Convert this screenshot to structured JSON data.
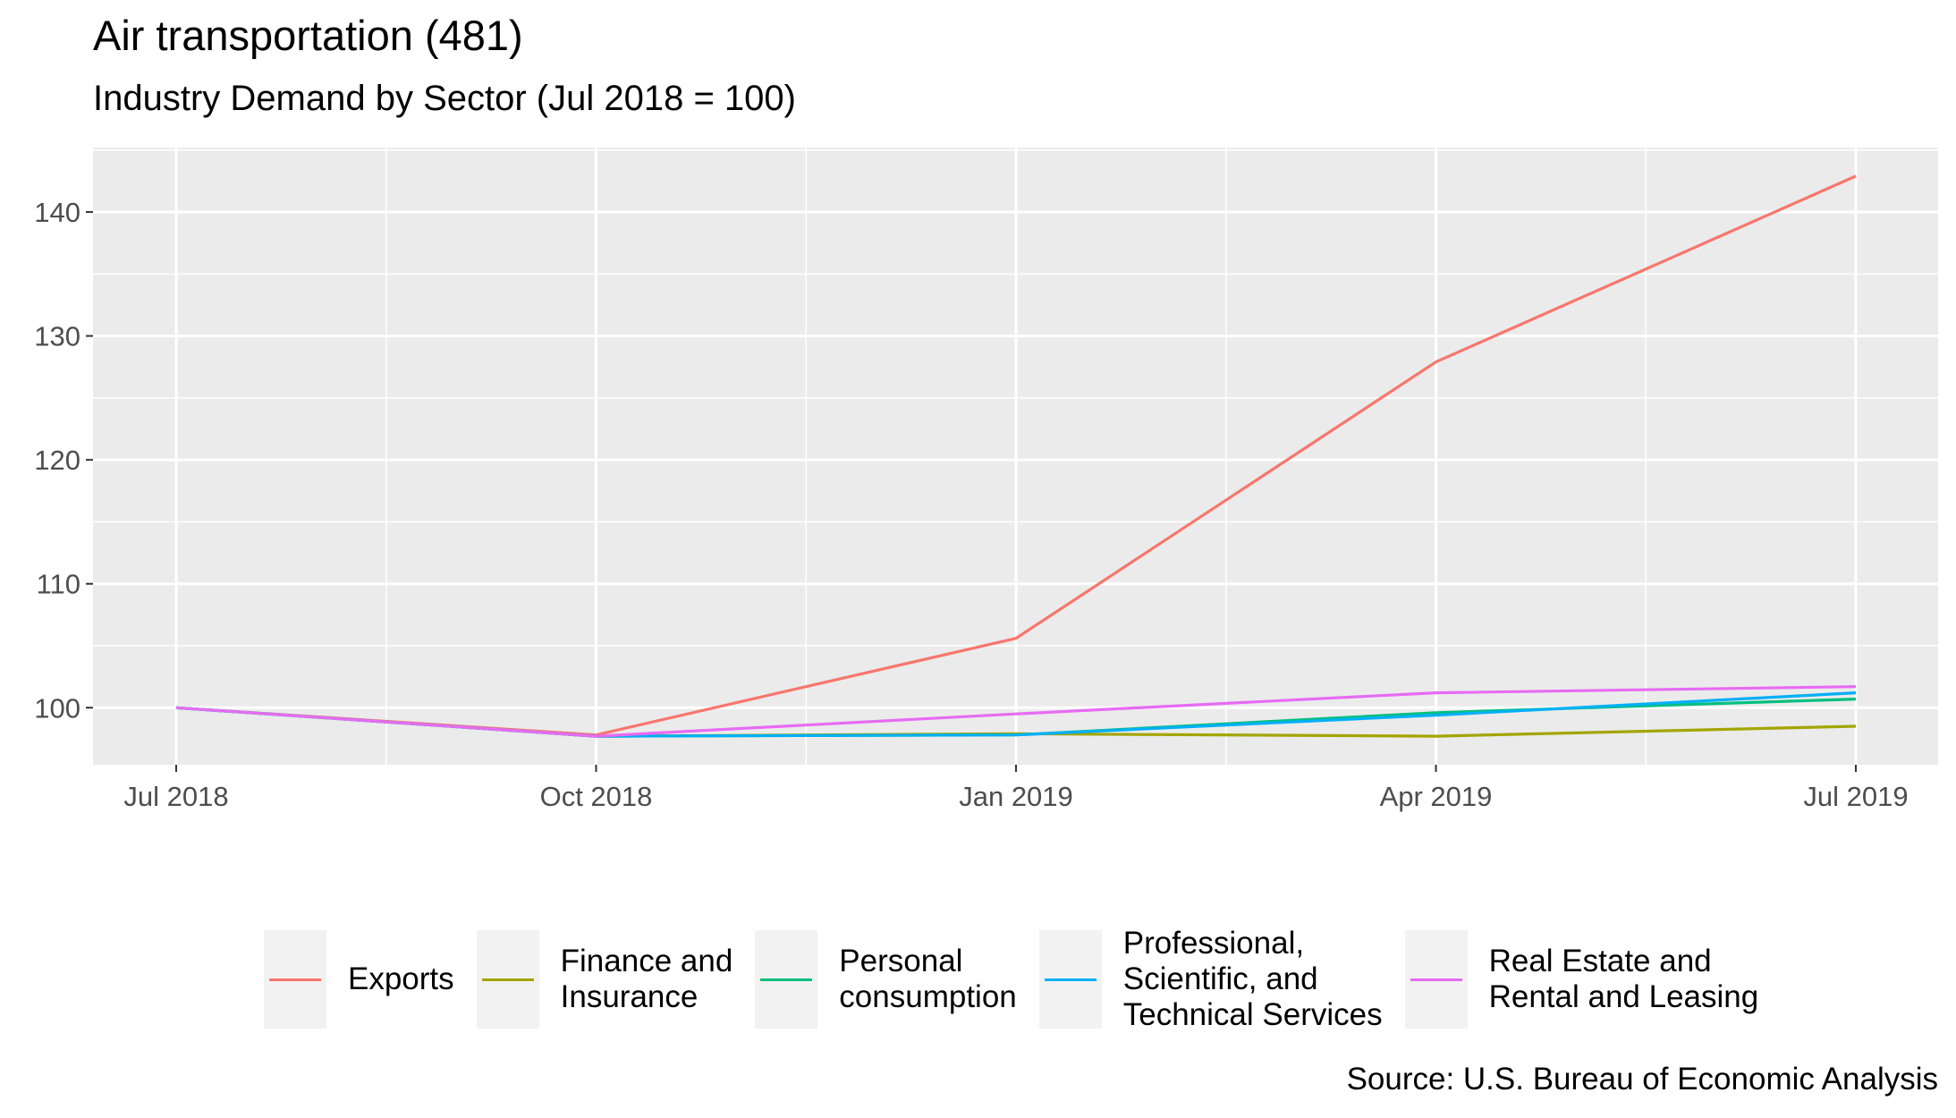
{
  "title": "Air transportation (481)",
  "subtitle": "Industry Demand by Sector (Jul 2018 = 100)",
  "caption": "Source: U.S. Bureau of Economic Analysis",
  "chart_data": {
    "type": "line",
    "title": "Air transportation (481)",
    "subtitle": "Industry Demand by Sector (Jul 2018 = 100)",
    "xlabel": "",
    "ylabel": "",
    "x": [
      "2018-07",
      "2018-10",
      "2019-01",
      "2019-04",
      "2019-07"
    ],
    "x_tick_labels": [
      "Jul 2018",
      "Oct 2018",
      "Jan 2019",
      "Apr 2019",
      "Jul 2019"
    ],
    "y_ticks": [
      100,
      110,
      120,
      130,
      140
    ],
    "ylim": [
      95.4,
      145.2
    ],
    "grid": true,
    "legend_position": "bottom",
    "background": "#ebebeb",
    "series": [
      {
        "name": "Exports",
        "color": "#f8766d",
        "values": [
          100.0,
          97.8,
          105.6,
          127.9,
          142.9
        ]
      },
      {
        "name": "Finance and\nInsurance",
        "color": "#a3a500",
        "values": [
          100.0,
          97.7,
          97.9,
          97.7,
          98.5
        ]
      },
      {
        "name": "Personal\nconsumption",
        "color": "#00bf7d",
        "values": [
          100.0,
          97.7,
          97.8,
          99.6,
          100.7
        ]
      },
      {
        "name": "Professional,\nScientific, and\nTechnical Services",
        "color": "#00b0f6",
        "values": [
          100.0,
          97.7,
          97.8,
          99.4,
          101.2
        ]
      },
      {
        "name": "Real Estate and\nRental and Leasing",
        "color": "#e76bf3",
        "values": [
          100.0,
          97.7,
          99.5,
          101.2,
          101.7
        ]
      }
    ]
  }
}
